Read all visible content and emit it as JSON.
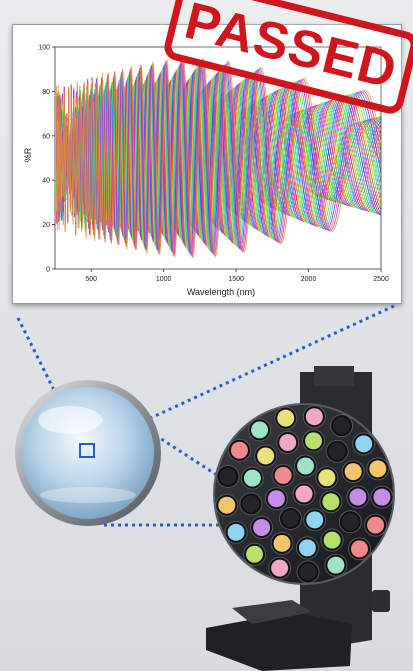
{
  "stamp": {
    "text": "PASSED",
    "color": "#d2141c"
  },
  "chart_data": {
    "type": "line",
    "xlabel": "Wavelength (nm)",
    "ylabel": "%R",
    "xlim": [
      250,
      2500
    ],
    "ylim": [
      0,
      100
    ],
    "x_ticks": [
      500,
      1000,
      1500,
      2000,
      2500
    ],
    "y_ticks": [
      0,
      20,
      40,
      60,
      80,
      100
    ],
    "grid": false,
    "legend": "none",
    "series_count": 40,
    "description_of_series": [
      {
        "envelope_max": 97,
        "minima_at_nm": [
          1450
        ],
        "min_value": 35
      },
      {
        "envelope_max": 88,
        "minima_at_nm": [
          1000,
          1480,
          1900
        ],
        "min_value": 5
      }
    ]
  },
  "scene": {
    "lens_color": "#a9c8e0",
    "dots_color": "#2a5cc8",
    "wheel_color": "#1c1e22",
    "filter_colors": [
      "#f2a7c4",
      "#b6e06a",
      "#8fd3f0",
      "#f6c46a",
      "#c58ce8",
      "#f08a8a",
      "#9fe3c7",
      "#e9e27a"
    ]
  }
}
